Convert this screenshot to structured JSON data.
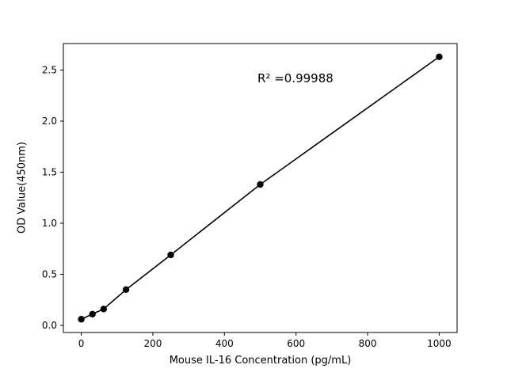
{
  "chart_data": {
    "type": "scatter",
    "title": "",
    "xlabel": "Mouse IL-16 Concentration (pg/mL)",
    "ylabel": "OD Value(450nm)",
    "annotation": "R² =0.99988",
    "x": [
      0,
      31.25,
      62.5,
      125,
      250,
      500,
      1000
    ],
    "y": [
      0.06,
      0.11,
      0.16,
      0.35,
      0.69,
      1.38,
      2.63
    ],
    "xlim": [
      -50,
      1050
    ],
    "ylim": [
      -0.07,
      2.76
    ],
    "xticks": {
      "values": [
        0,
        200,
        400,
        600,
        800,
        1000
      ],
      "labels": [
        "0",
        "200",
        "400",
        "600",
        "800",
        "1000"
      ]
    },
    "yticks": {
      "values": [
        0.0,
        0.5,
        1.0,
        1.5,
        2.0,
        2.5
      ],
      "labels": [
        "0.0",
        "0.5",
        "1.0",
        "1.5",
        "2.0",
        "2.5"
      ]
    },
    "grid": false,
    "legend": "none",
    "marker_color": "#000000",
    "line_color": "#000000",
    "background": "#ffffff"
  }
}
